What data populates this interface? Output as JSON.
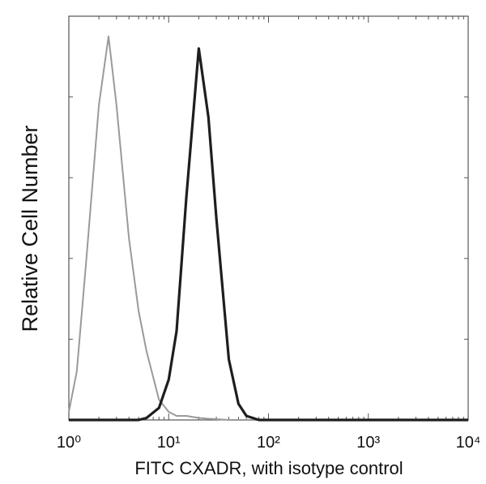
{
  "chart_data": {
    "type": "line",
    "xlabel": "FITC CXADR, with isotype control",
    "ylabel": "Relative Cell Number",
    "xscale": "log",
    "xlim": [
      1,
      10000
    ],
    "xticks": [
      {
        "value": 1,
        "label": "10⁰"
      },
      {
        "value": 10,
        "label": "10¹"
      },
      {
        "value": 100,
        "label": "10²"
      },
      {
        "value": 1000,
        "label": "10³"
      },
      {
        "value": 10000,
        "label": "10⁴"
      }
    ],
    "ylim": [
      0,
      100
    ],
    "yticks": [
      0,
      20,
      40,
      60,
      80,
      100
    ],
    "x": [
      1,
      1.2,
      1.5,
      2,
      2.5,
      3,
      4,
      5,
      6,
      8,
      10,
      12,
      15,
      20,
      25,
      30,
      40,
      50,
      60,
      80,
      100,
      1000,
      10000
    ],
    "series": [
      {
        "color": "#9a9a9a",
        "values": [
          2,
          12,
          40,
          78,
          95,
          78,
          45,
          27,
          17,
          5,
          2,
          1,
          1,
          0.5,
          0.3,
          0.2,
          0,
          0,
          0,
          0,
          0,
          0,
          0
        ]
      },
      {
        "color": "#1e1e1e",
        "values": [
          0,
          0,
          0,
          0,
          0,
          0,
          0,
          0,
          0.5,
          3,
          10,
          22,
          55,
          92,
          75,
          50,
          15,
          4,
          1,
          0,
          0,
          0,
          0
        ]
      }
    ]
  }
}
